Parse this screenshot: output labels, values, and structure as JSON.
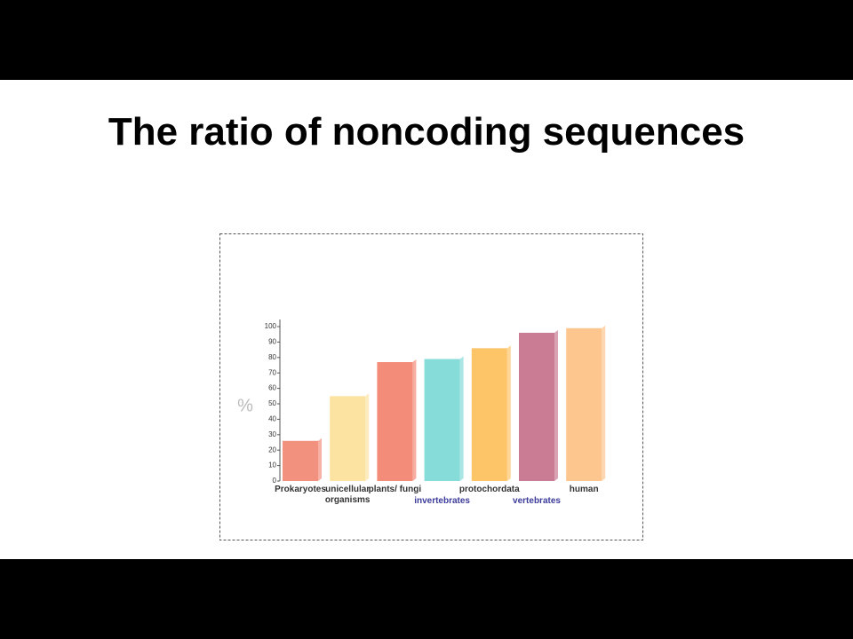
{
  "chart_data": {
    "type": "bar",
    "title": "The ratio of noncoding sequences",
    "y_label": "%",
    "categories": [
      "Prokaryotes",
      "unicellular organisms",
      "plants/ fungi",
      "invertebrates",
      "protochordata",
      "vertebrates",
      "human"
    ],
    "values": [
      26,
      55,
      77,
      79,
      86,
      96,
      99
    ],
    "colors": [
      "#f3917f",
      "#fde3a2",
      "#f38c78",
      "#86dcd9",
      "#fdc468",
      "#c97c93",
      "#fdc68e"
    ],
    "ylim": [
      0,
      100
    ],
    "yticks": [
      0,
      10,
      20,
      30,
      40,
      50,
      60,
      70,
      80,
      90,
      100
    ]
  }
}
